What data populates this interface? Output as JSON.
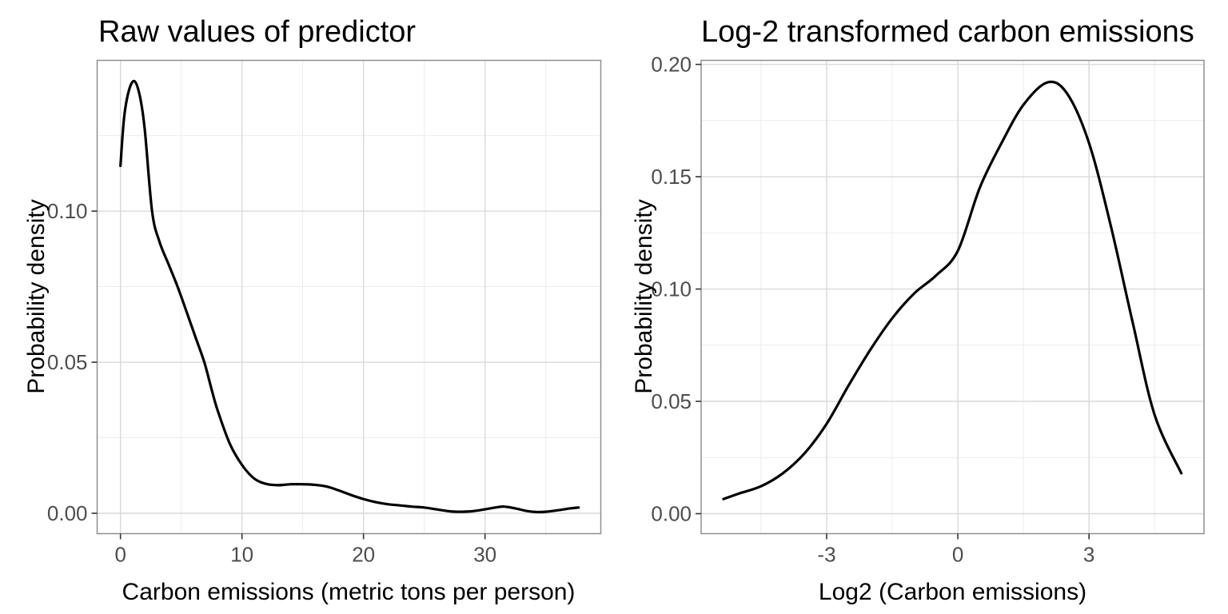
{
  "figure": {
    "background": "#ffffff",
    "panel_fill": "#ffffff",
    "panel_border_color": "#8f8f8f",
    "grid_major_color": "#d9d9d9",
    "grid_minor_color": "#ececec",
    "curve_color": "#000000",
    "tick_mark_color": "#333333",
    "tick_label_color": "#4d4d4d",
    "title_color": "#000000"
  },
  "chart_data": [
    {
      "type": "line",
      "subtype": "density",
      "title": "Raw values of predictor",
      "xlabel": "Carbon emissions (metric tons per person)",
      "ylabel": "Probability density",
      "legend": "none",
      "grid": true,
      "xlim": [
        -1.92,
        39.53
      ],
      "ylim": [
        -0.00675,
        0.1499
      ],
      "x_ticks": [
        0,
        10,
        20,
        30
      ],
      "x_tick_labels": [
        "0",
        "10",
        "20",
        "30"
      ],
      "x_minor_ticks": [
        5,
        15,
        25,
        35
      ],
      "y_ticks": [
        0,
        0.05,
        0.1
      ],
      "y_tick_labels": [
        "0.00",
        "0.05",
        "0.10"
      ],
      "y_minor_ticks": [
        0.025,
        0.075,
        0.125
      ],
      "x": [
        0,
        0.3,
        0.7,
        1.15,
        1.6,
        2.0,
        2.6,
        3.2,
        4,
        4.7,
        5.5,
        6.2,
        6.9,
        7.5,
        8,
        9,
        10,
        11,
        12,
        13,
        14,
        15,
        16,
        17,
        18,
        19,
        20,
        21,
        22,
        23,
        24,
        25,
        26,
        27,
        27.8,
        29,
        30,
        31,
        31.6,
        32.5,
        33.5,
        34.3,
        35,
        36,
        37,
        37.7
      ],
      "y": [
        0.115,
        0.131,
        0.14,
        0.143,
        0.138,
        0.127,
        0.1,
        0.09,
        0.082,
        0.075,
        0.066,
        0.058,
        0.05,
        0.041,
        0.034,
        0.023,
        0.016,
        0.0115,
        0.0097,
        0.0093,
        0.0096,
        0.0096,
        0.0094,
        0.0088,
        0.0075,
        0.006,
        0.0047,
        0.0037,
        0.003,
        0.0026,
        0.0022,
        0.0019,
        0.0013,
        0.0007,
        0.0005,
        0.0007,
        0.0013,
        0.002,
        0.0022,
        0.0016,
        0.0007,
        0.0004,
        0.0005,
        0.001,
        0.0016,
        0.0019
      ]
    },
    {
      "type": "line",
      "subtype": "density",
      "title": "Log-2 transformed carbon emissions",
      "xlabel": "Log2 (Carbon emissions)",
      "ylabel": "Probability density",
      "legend": "none",
      "grid": true,
      "xlim": [
        -5.87,
        5.63
      ],
      "ylim": [
        -0.0089,
        0.2018
      ],
      "x_ticks": [
        -3,
        0,
        3
      ],
      "x_tick_labels": [
        "-3",
        "0",
        "3"
      ],
      "x_minor_ticks": [
        -4.5,
        -1.5,
        1.5,
        4.5
      ],
      "y_ticks": [
        0,
        0.05,
        0.1,
        0.15,
        0.2
      ],
      "y_tick_labels": [
        "0.00",
        "0.05",
        "0.10",
        "0.15",
        "0.20"
      ],
      "y_minor_ticks": [
        0.025,
        0.075,
        0.125,
        0.175
      ],
      "x": [
        -5.36,
        -5,
        -4.5,
        -4,
        -3.5,
        -3,
        -2.5,
        -2,
        -1.5,
        -1,
        -0.5,
        0,
        0.5,
        1,
        1.5,
        2.05,
        2.5,
        3,
        3.5,
        4,
        4.5,
        5.11
      ],
      "y": [
        0.0065,
        0.009,
        0.0122,
        0.018,
        0.027,
        0.04,
        0.057,
        0.073,
        0.087,
        0.098,
        0.106,
        0.117,
        0.145,
        0.165,
        0.182,
        0.192,
        0.187,
        0.165,
        0.128,
        0.085,
        0.044,
        0.018
      ]
    }
  ]
}
